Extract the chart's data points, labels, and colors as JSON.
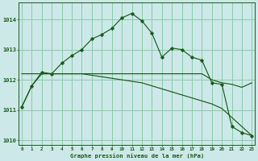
{
  "title": "Graphe pression niveau de la mer (hPa)",
  "background_color": "#cde8e8",
  "grid_color": "#88ccaa",
  "line_color": "#1a5c1a",
  "hours": [
    0,
    1,
    2,
    3,
    4,
    5,
    6,
    7,
    8,
    9,
    10,
    11,
    12,
    13,
    14,
    15,
    16,
    17,
    18,
    19,
    20,
    21,
    22,
    23
  ],
  "series_main": [
    1011.1,
    1011.8,
    1012.25,
    1012.2,
    1012.55,
    1012.8,
    1013.0,
    1013.35,
    1013.5,
    1013.7,
    1014.05,
    1014.2,
    1013.95,
    1013.55,
    1012.75,
    1013.05,
    1013.0,
    1012.75,
    1012.65,
    1011.9,
    1011.85,
    1010.45,
    1010.25,
    1010.15
  ],
  "series_upper": [
    1012.2,
    1012.2,
    1012.2,
    1012.2,
    1012.2,
    1012.2,
    1012.2,
    1012.2,
    1012.2,
    1012.2,
    1012.2,
    1012.2,
    1012.2,
    1012.2,
    1012.2,
    1012.2,
    1012.2,
    1012.2,
    1012.2,
    1012.0,
    1011.9,
    1011.85,
    1011.75,
    1011.9
  ],
  "series_lower": [
    1011.1,
    1011.8,
    1012.2,
    1012.2,
    1012.2,
    1012.2,
    1012.2,
    1012.15,
    1012.1,
    1012.05,
    1012.0,
    1011.95,
    1011.9,
    1011.8,
    1011.7,
    1011.6,
    1011.5,
    1011.4,
    1011.3,
    1011.2,
    1011.05,
    1010.75,
    1010.45,
    1010.15
  ],
  "ylim": [
    1009.85,
    1014.55
  ],
  "yticks": [
    1010,
    1011,
    1012,
    1013,
    1014
  ],
  "xlim": [
    -0.3,
    23.3
  ],
  "figsize": [
    3.2,
    2.0
  ],
  "dpi": 100
}
